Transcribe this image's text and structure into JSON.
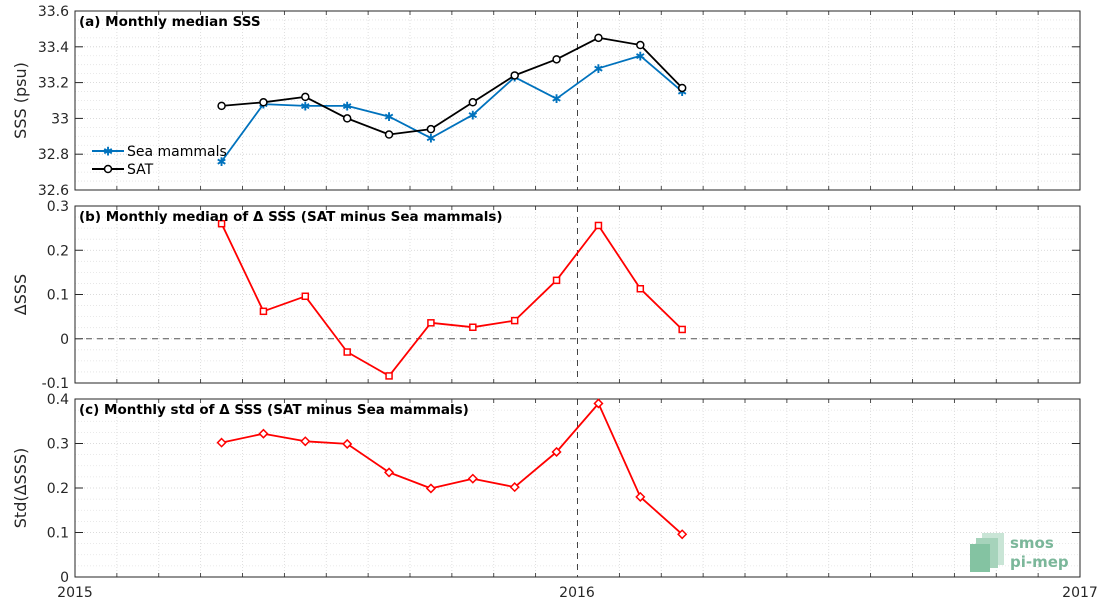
{
  "chart_data": [
    {
      "type": "line",
      "title": "(a) Monthly median SSS",
      "ylabel": "SSS (psu)",
      "ylim": [
        32.6,
        33.6
      ],
      "yticks": [
        32.6,
        32.8,
        33,
        33.2,
        33.4,
        33.6
      ],
      "ytick_labels": [
        "32.6",
        "32.8",
        "33",
        "33.2",
        "33.4",
        "33.6"
      ],
      "legend": "left",
      "grid": true,
      "series": [
        {
          "name": "Sea mammals",
          "color": "#0072bd",
          "marker": "star",
          "x": [
            0.2917,
            0.375,
            0.4583,
            0.5417,
            0.625,
            0.7083,
            0.7917,
            0.875,
            0.9583,
            1.0417,
            1.125,
            1.2083
          ],
          "y": [
            32.76,
            33.08,
            33.07,
            33.07,
            33.01,
            32.89,
            33.02,
            33.23,
            33.11,
            33.28,
            33.35,
            33.15
          ]
        },
        {
          "name": "SAT",
          "color": "#000000",
          "marker": "circle",
          "x": [
            0.2917,
            0.375,
            0.4583,
            0.5417,
            0.625,
            0.7083,
            0.7917,
            0.875,
            0.9583,
            1.0417,
            1.125,
            1.2083
          ],
          "y": [
            33.07,
            33.09,
            33.12,
            33.0,
            32.91,
            32.94,
            33.09,
            33.24,
            33.33,
            33.45,
            33.41,
            33.17
          ]
        }
      ]
    },
    {
      "type": "line",
      "title": "(b) Monthly median of Δ SSS (SAT minus Sea mammals)",
      "ylabel": "ΔSSS",
      "ylim": [
        -0.1,
        0.3
      ],
      "yticks": [
        -0.1,
        0,
        0.1,
        0.2,
        0.3
      ],
      "ytick_labels": [
        "-0.1",
        "0",
        "0.1",
        "0.2",
        "0.3"
      ],
      "grid": true,
      "zero_line": true,
      "series": [
        {
          "color": "#ff0000",
          "marker": "square",
          "x": [
            0.2917,
            0.375,
            0.4583,
            0.5417,
            0.625,
            0.7083,
            0.7917,
            0.875,
            0.9583,
            1.0417,
            1.125,
            1.2083
          ],
          "y": [
            0.26,
            0.062,
            0.096,
            -0.03,
            -0.084,
            0.036,
            0.026,
            0.041,
            0.132,
            0.256,
            0.113,
            0.021
          ]
        }
      ]
    },
    {
      "type": "line",
      "title": "(c) Monthly std of Δ SSS (SAT minus Sea mammals)",
      "ylabel": "Std(ΔSSS)",
      "ylim": [
        0,
        0.4
      ],
      "yticks": [
        0,
        0.1,
        0.2,
        0.3,
        0.4
      ],
      "ytick_labels": [
        "0",
        "0.1",
        "0.2",
        "0.3",
        "0.4"
      ],
      "grid": true,
      "series": [
        {
          "color": "#ff0000",
          "marker": "diamond",
          "x": [
            0.2917,
            0.375,
            0.4583,
            0.5417,
            0.625,
            0.7083,
            0.7917,
            0.875,
            0.9583,
            1.0417,
            1.125,
            1.2083
          ],
          "y": [
            0.302,
            0.322,
            0.305,
            0.299,
            0.235,
            0.199,
            0.221,
            0.202,
            0.281,
            0.39,
            0.18,
            0.096
          ]
        }
      ]
    }
  ],
  "x_axis": {
    "xlim": [
      0,
      2
    ],
    "ticks": [
      0,
      1,
      2
    ],
    "tick_labels": [
      "2015",
      "2016",
      "2017"
    ],
    "vline": 1
  },
  "logo": {
    "line1": "smos",
    "line2": "pi-mep",
    "color": "#7bb79a"
  }
}
